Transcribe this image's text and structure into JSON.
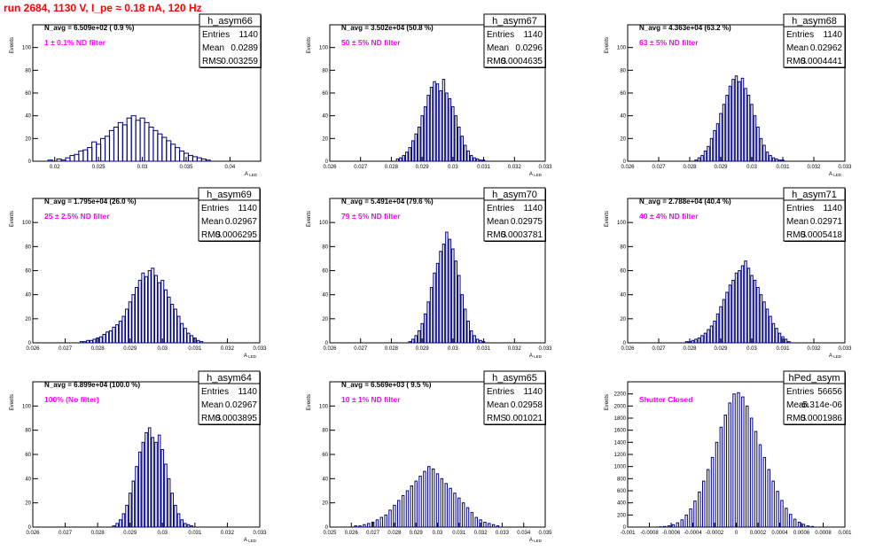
{
  "page": {
    "run_title": "run 2684,  1130 V, I_pe ≈ 0.18 nA, 120 Hz"
  },
  "stat_labels": {
    "entries": "Entries",
    "mean": "Mean",
    "rms": "RMS"
  },
  "colors": {
    "title": "#ff0000",
    "annotation": "#ff00ff",
    "histogram": "#000080",
    "axis": "#000000"
  },
  "chart_data": [
    {
      "type": "histogram",
      "name": "h_asym66",
      "navg": "N_avg = 6.509e+02 ( 0.9 %)",
      "filter": "1 ± 0.1% ND filter",
      "stats": {
        "entries": "1140",
        "mean": "0.0289",
        "rms": "0.003259"
      },
      "ylabel": "Events",
      "xlabel": "A_LED",
      "xlim": [
        0.0175,
        0.0435
      ],
      "ylim": [
        0,
        120
      ],
      "xticks": [
        0.02,
        0.025,
        0.03,
        0.035,
        0.04
      ],
      "xtick_labels": [
        "0.02",
        "0.025",
        "0.03",
        "0.035",
        "0.04"
      ],
      "yticks": [
        0,
        20,
        40,
        60,
        80,
        100
      ],
      "bin_width": 0.00052,
      "x": [
        0.0195,
        0.02,
        0.0205,
        0.021,
        0.0215,
        0.022,
        0.0225,
        0.023,
        0.0235,
        0.024,
        0.0245,
        0.025,
        0.0255,
        0.026,
        0.0265,
        0.027,
        0.0275,
        0.028,
        0.0285,
        0.029,
        0.0295,
        0.03,
        0.0305,
        0.031,
        0.0315,
        0.032,
        0.0325,
        0.033,
        0.0335,
        0.034,
        0.0345,
        0.035,
        0.0355,
        0.036,
        0.0365,
        0.037,
        0.0375
      ],
      "counts": [
        1,
        0,
        2,
        1,
        3,
        5,
        6,
        9,
        10,
        12,
        17,
        15,
        20,
        22,
        27,
        30,
        34,
        32,
        38,
        40,
        36,
        38,
        34,
        30,
        27,
        24,
        21,
        18,
        15,
        12,
        9,
        7,
        5,
        4,
        3,
        2,
        1
      ]
    },
    {
      "type": "histogram",
      "name": "h_asym67",
      "navg": "N_avg = 3.502e+04 (50.8 %)",
      "filter": "50 ± 5% ND filter",
      "stats": {
        "entries": "1140",
        "mean": "0.0296",
        "rms": "0.0004635"
      },
      "ylabel": "Events",
      "xlabel": "A_LED",
      "xlim": [
        0.026,
        0.033
      ],
      "ylim": [
        0,
        120
      ],
      "xticks": [
        0.026,
        0.027,
        0.028,
        0.029,
        0.03,
        0.031,
        0.032,
        0.033
      ],
      "xtick_labels": [
        "0.026",
        "0.027",
        "0.028",
        "0.029",
        "0.03",
        "0.031",
        "0.032",
        "0.033"
      ],
      "yticks": [
        0,
        20,
        40,
        60,
        80,
        100
      ],
      "bin_width": 7e-05,
      "x": [
        0.0282,
        0.0283,
        0.0284,
        0.0285,
        0.0286,
        0.0287,
        0.0288,
        0.0289,
        0.029,
        0.0291,
        0.0292,
        0.0293,
        0.0294,
        0.0295,
        0.0296,
        0.0297,
        0.0298,
        0.0299,
        0.03,
        0.0301,
        0.0302,
        0.0303,
        0.0304,
        0.0305,
        0.0306,
        0.0307,
        0.0308,
        0.0309,
        0.031
      ],
      "counts": [
        2,
        3,
        5,
        8,
        12,
        18,
        24,
        30,
        40,
        48,
        58,
        65,
        70,
        68,
        62,
        72,
        60,
        55,
        48,
        40,
        30,
        22,
        14,
        9,
        5,
        3,
        2,
        1,
        1
      ]
    },
    {
      "type": "histogram",
      "name": "h_asym68",
      "navg": "N_avg = 4.363e+04 (63.2 %)",
      "filter": "63 ± 5% ND filter",
      "stats": {
        "entries": "1140",
        "mean": "0.02962",
        "rms": "0.0004441"
      },
      "ylabel": "Events",
      "xlabel": "A_LED",
      "xlim": [
        0.026,
        0.033
      ],
      "ylim": [
        0,
        120
      ],
      "xticks": [
        0.026,
        0.027,
        0.028,
        0.029,
        0.03,
        0.031,
        0.032,
        0.033
      ],
      "xtick_labels": [
        "0.026",
        "0.027",
        "0.028",
        "0.029",
        "0.03",
        "0.031",
        "0.032",
        "0.033"
      ],
      "yticks": [
        0,
        20,
        40,
        60,
        80,
        100
      ],
      "bin_width": 7e-05,
      "x": [
        0.0282,
        0.0283,
        0.0284,
        0.0285,
        0.0286,
        0.0287,
        0.0288,
        0.0289,
        0.029,
        0.0291,
        0.0292,
        0.0293,
        0.0294,
        0.0295,
        0.0296,
        0.0297,
        0.0298,
        0.0299,
        0.03,
        0.0301,
        0.0302,
        0.0303,
        0.0304,
        0.0305,
        0.0306,
        0.0307,
        0.0308,
        0.0309,
        0.031
      ],
      "counts": [
        1,
        3,
        5,
        9,
        13,
        20,
        27,
        33,
        42,
        50,
        58,
        66,
        72,
        75,
        70,
        73,
        64,
        58,
        50,
        40,
        30,
        20,
        14,
        8,
        5,
        3,
        2,
        1,
        1
      ]
    },
    {
      "type": "histogram",
      "name": "h_asym69",
      "navg": "N_avg = 1.795e+04 (26.0 %)",
      "filter": "25 ± 2.5% ND filter",
      "stats": {
        "entries": "1140",
        "mean": "0.02967",
        "rms": "0.0006295"
      },
      "ylabel": "Events",
      "xlabel": "A_LED",
      "xlim": [
        0.026,
        0.033
      ],
      "ylim": [
        0,
        120
      ],
      "xticks": [
        0.026,
        0.027,
        0.028,
        0.029,
        0.03,
        0.031,
        0.032,
        0.033
      ],
      "xtick_labels": [
        "0.026",
        "0.027",
        "0.028",
        "0.029",
        "0.03",
        "0.031",
        "0.032",
        "0.033"
      ],
      "yticks": [
        0,
        20,
        40,
        60,
        80,
        100
      ],
      "bin_width": 8e-05,
      "x": [
        0.0275,
        0.0276,
        0.0277,
        0.0278,
        0.0279,
        0.028,
        0.0281,
        0.0282,
        0.0283,
        0.0284,
        0.0285,
        0.0286,
        0.0287,
        0.0288,
        0.0289,
        0.029,
        0.0291,
        0.0292,
        0.0293,
        0.0294,
        0.0295,
        0.0296,
        0.0297,
        0.0298,
        0.0299,
        0.03,
        0.0301,
        0.0302,
        0.0303,
        0.0304,
        0.0305,
        0.0306,
        0.0307,
        0.0308,
        0.0309,
        0.031,
        0.0311,
        0.0312
      ],
      "counts": [
        1,
        1,
        2,
        2,
        3,
        4,
        5,
        7,
        9,
        10,
        13,
        15,
        18,
        22,
        28,
        34,
        40,
        46,
        52,
        58,
        55,
        60,
        62,
        56,
        50,
        52,
        44,
        38,
        32,
        28,
        22,
        16,
        12,
        8,
        6,
        4,
        2,
        1
      ]
    },
    {
      "type": "histogram",
      "name": "h_asym70",
      "navg": "N_avg = 5.491e+04 (79.6 %)",
      "filter": "79 ± 5% ND filter",
      "stats": {
        "entries": "1140",
        "mean": "0.02975",
        "rms": "0.0003781"
      },
      "ylabel": "Events",
      "xlabel": "A_LED",
      "xlim": [
        0.026,
        0.033
      ],
      "ylim": [
        0,
        120
      ],
      "xticks": [
        0.026,
        0.027,
        0.028,
        0.029,
        0.03,
        0.031,
        0.032,
        0.033
      ],
      "xtick_labels": [
        "0.026",
        "0.027",
        "0.028",
        "0.029",
        "0.03",
        "0.031",
        "0.032",
        "0.033"
      ],
      "yticks": [
        0,
        20,
        40,
        60,
        80,
        100
      ],
      "bin_width": 7e-05,
      "x": [
        0.0286,
        0.0287,
        0.0288,
        0.0289,
        0.029,
        0.0291,
        0.0292,
        0.0293,
        0.0294,
        0.0295,
        0.0296,
        0.0297,
        0.0298,
        0.0299,
        0.03,
        0.0301,
        0.0302,
        0.0303,
        0.0304,
        0.0305,
        0.0306,
        0.0307,
        0.0308,
        0.0309,
        0.031
      ],
      "counts": [
        1,
        3,
        6,
        10,
        16,
        24,
        34,
        46,
        58,
        66,
        76,
        82,
        92,
        86,
        78,
        68,
        56,
        40,
        28,
        18,
        10,
        6,
        3,
        2,
        1
      ]
    },
    {
      "type": "histogram",
      "name": "h_asym71",
      "navg": "N_avg = 2.788e+04 (40.4 %)",
      "filter": "40 ± 4% ND filter",
      "stats": {
        "entries": "1140",
        "mean": "0.02971",
        "rms": "0.0005418"
      },
      "ylabel": "Events",
      "xlabel": "A_LED",
      "xlim": [
        0.026,
        0.033
      ],
      "ylim": [
        0,
        120
      ],
      "xticks": [
        0.026,
        0.027,
        0.028,
        0.029,
        0.03,
        0.031,
        0.032,
        0.033
      ],
      "xtick_labels": [
        "0.026",
        "0.027",
        "0.028",
        "0.029",
        "0.03",
        "0.031",
        "0.032",
        "0.033"
      ],
      "yticks": [
        0,
        20,
        40,
        60,
        80,
        100
      ],
      "bin_width": 7e-05,
      "x": [
        0.0279,
        0.028,
        0.0281,
        0.0282,
        0.0283,
        0.0284,
        0.0285,
        0.0286,
        0.0287,
        0.0288,
        0.0289,
        0.029,
        0.0291,
        0.0292,
        0.0293,
        0.0294,
        0.0295,
        0.0296,
        0.0297,
        0.0298,
        0.0299,
        0.03,
        0.0301,
        0.0302,
        0.0303,
        0.0304,
        0.0305,
        0.0306,
        0.0307,
        0.0308,
        0.0309,
        0.031,
        0.0311,
        0.0312
      ],
      "counts": [
        1,
        1,
        2,
        3,
        4,
        6,
        8,
        11,
        14,
        18,
        24,
        30,
        36,
        42,
        48,
        52,
        58,
        60,
        64,
        68,
        62,
        56,
        52,
        46,
        40,
        34,
        28,
        22,
        16,
        12,
        8,
        5,
        3,
        1
      ]
    },
    {
      "type": "histogram",
      "name": "h_asym64",
      "navg": "N_avg = 6.899e+04 (100.0 %)",
      "filter": "100% (No filter)",
      "stats": {
        "entries": "1140",
        "mean": "0.02967",
        "rms": "0.0003895"
      },
      "ylabel": "Events",
      "xlabel": "A_LED",
      "xlim": [
        0.026,
        0.033
      ],
      "ylim": [
        0,
        120
      ],
      "xticks": [
        0.026,
        0.027,
        0.028,
        0.029,
        0.03,
        0.031,
        0.032,
        0.033
      ],
      "xtick_labels": [
        "0.026",
        "0.027",
        "0.028",
        "0.029",
        "0.03",
        "0.031",
        "0.032",
        "0.033"
      ],
      "yticks": [
        0,
        20,
        40,
        60,
        80,
        100
      ],
      "bin_width": 7e-05,
      "x": [
        0.0285,
        0.0286,
        0.0287,
        0.0288,
        0.0289,
        0.029,
        0.0291,
        0.0292,
        0.0293,
        0.0294,
        0.0295,
        0.0296,
        0.0297,
        0.0298,
        0.0299,
        0.03,
        0.0301,
        0.0302,
        0.0303,
        0.0304,
        0.0305,
        0.0306,
        0.0307,
        0.0308,
        0.0309
      ],
      "counts": [
        1,
        3,
        6,
        11,
        18,
        28,
        38,
        50,
        62,
        70,
        78,
        82,
        74,
        70,
        76,
        64,
        52,
        40,
        28,
        18,
        11,
        6,
        3,
        2,
        1
      ]
    },
    {
      "type": "histogram",
      "name": "h_asym65",
      "navg": "N_avg = 6.569e+03 ( 9.5 %)",
      "filter": "10 ± 1% ND filter",
      "stats": {
        "entries": "1140",
        "mean": "0.02958",
        "rms": "0.001021"
      },
      "ylabel": "Events",
      "xlabel": "A_LED",
      "xlim": [
        0.025,
        0.035
      ],
      "ylim": [
        0,
        120
      ],
      "xticks": [
        0.025,
        0.026,
        0.027,
        0.028,
        0.029,
        0.03,
        0.031,
        0.032,
        0.033,
        0.034,
        0.035
      ],
      "xtick_labels": [
        "0.025",
        "0.026",
        "0.027",
        "0.028",
        "0.029",
        "0.03",
        "0.031",
        "0.032",
        "0.033",
        "0.034",
        "0.035"
      ],
      "yticks": [
        0,
        20,
        40,
        60,
        80,
        100
      ],
      "bin_width": 0.0001,
      "x": [
        0.0262,
        0.0264,
        0.0266,
        0.0268,
        0.027,
        0.0272,
        0.0274,
        0.0276,
        0.0278,
        0.028,
        0.0282,
        0.0284,
        0.0286,
        0.0288,
        0.029,
        0.0292,
        0.0294,
        0.0296,
        0.0298,
        0.03,
        0.0302,
        0.0304,
        0.0306,
        0.0308,
        0.031,
        0.0312,
        0.0314,
        0.0316,
        0.0318,
        0.032,
        0.0322,
        0.0324,
        0.0326,
        0.0328
      ],
      "counts": [
        1,
        1,
        2,
        3,
        4,
        6,
        8,
        10,
        14,
        18,
        22,
        26,
        30,
        34,
        38,
        42,
        46,
        50,
        48,
        44,
        40,
        36,
        32,
        28,
        24,
        20,
        16,
        12,
        8,
        6,
        4,
        3,
        2,
        1
      ]
    },
    {
      "type": "histogram",
      "name": "hPed_asym",
      "navg": "",
      "filter": "Shutter Closed",
      "stats": {
        "entries": "56656",
        "mean": "-5.314e-06",
        "rms": "0.0001986"
      },
      "ylabel": "Events",
      "xlabel": "",
      "xlim": [
        -0.001,
        0.001
      ],
      "ylim": [
        0,
        2400
      ],
      "xticks": [
        -0.001,
        -0.0008,
        -0.0006,
        -0.0004,
        -0.0002,
        0,
        0.0002,
        0.0004,
        0.0006,
        0.0008,
        0.001
      ],
      "xtick_labels": [
        "-0.001",
        "-0.0008",
        "-0.0006",
        "-0.0004",
        "-0.0002",
        "0",
        "0.0002",
        "0.0004",
        "0.0006",
        "0.0008",
        "0.001"
      ],
      "yticks": [
        0,
        200,
        400,
        600,
        800,
        1000,
        1200,
        1400,
        1600,
        1800,
        2000,
        2200
      ],
      "bin_width": 2e-05,
      "x": [
        -0.0007,
        -0.00066,
        -0.00062,
        -0.00058,
        -0.00054,
        -0.0005,
        -0.00046,
        -0.00042,
        -0.00038,
        -0.00034,
        -0.0003,
        -0.00026,
        -0.00022,
        -0.00018,
        -0.00014,
        -0.0001,
        -6e-05,
        -2e-05,
        2e-05,
        6e-05,
        0.0001,
        0.00014,
        0.00018,
        0.00022,
        0.00026,
        0.0003,
        0.00034,
        0.00038,
        0.00042,
        0.00046,
        0.0005,
        0.00054,
        0.00058,
        0.00062,
        0.00066,
        0.0007
      ],
      "counts": [
        5,
        10,
        20,
        40,
        70,
        120,
        200,
        300,
        430,
        580,
        760,
        950,
        1150,
        1400,
        1650,
        1850,
        2050,
        2200,
        2220,
        2150,
        2000,
        1800,
        1580,
        1360,
        1150,
        950,
        760,
        590,
        440,
        310,
        210,
        130,
        80,
        45,
        20,
        10
      ]
    }
  ]
}
